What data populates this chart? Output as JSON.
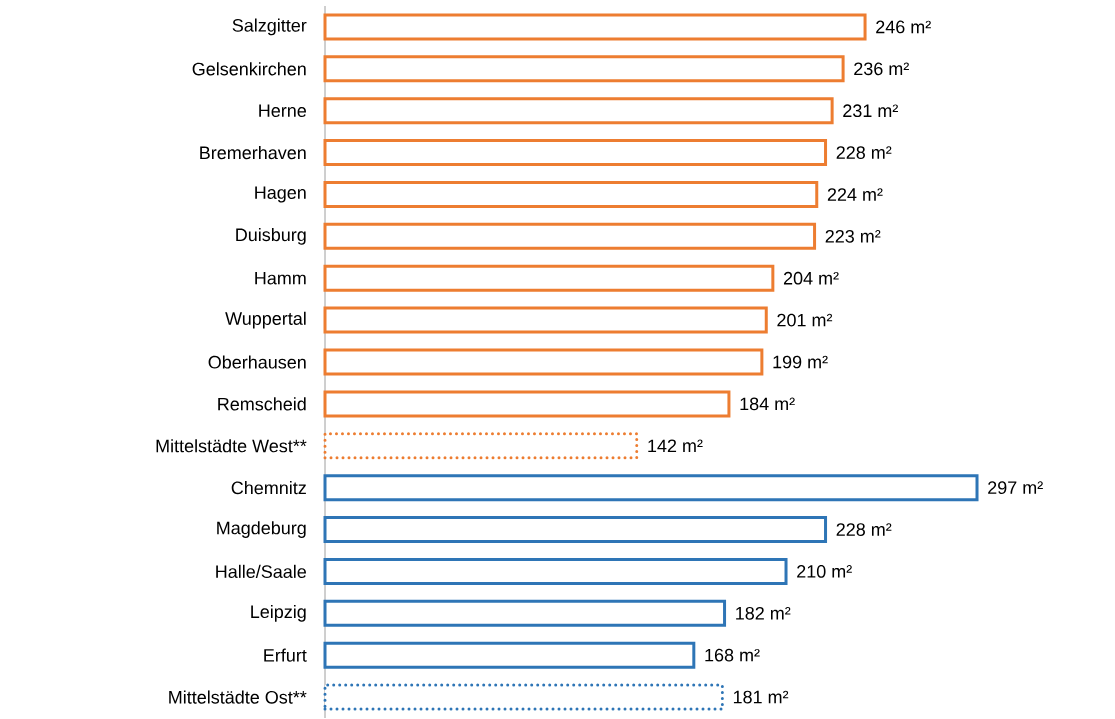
{
  "chart_data": {
    "type": "bar",
    "orientation": "horizontal",
    "categories": [
      "Salzgitter",
      "Gelsenkirchen",
      "Herne",
      "Bremerhaven",
      "Hagen",
      "Duisburg",
      "Hamm",
      "Wuppertal",
      "Oberhausen",
      "Remscheid",
      "Mittelstädte West**",
      "Chemnitz",
      "Magdeburg",
      "Halle/Saale",
      "Leipzig",
      "Erfurt",
      "Mittelstädte Ost**"
    ],
    "xlim": [
      0,
      297
    ],
    "tick_labels": "y",
    "series": [
      {
        "color": "#ed7d31",
        "line_style": "solid",
        "values": [
          246,
          236,
          231,
          228,
          224,
          223,
          204,
          201,
          199,
          184,
          null,
          null,
          null,
          null,
          null,
          null,
          null
        ],
        "value_labels": [
          "246 m²",
          "236 m²",
          "231 m²",
          "228 m²",
          "224 m²",
          "223 m²",
          "204 m²",
          "201 m²",
          "199 m²",
          "184 m²",
          null,
          null,
          null,
          null,
          null,
          null,
          null
        ]
      },
      {
        "color": "#ed7d31",
        "line_style": "dotted",
        "values": [
          null,
          null,
          null,
          null,
          null,
          null,
          null,
          null,
          null,
          null,
          142,
          null,
          null,
          null,
          null,
          null,
          null
        ],
        "value_labels": [
          null,
          null,
          null,
          null,
          null,
          null,
          null,
          null,
          null,
          null,
          "142 m²",
          null,
          null,
          null,
          null,
          null,
          null
        ]
      },
      {
        "color": "#2e75b6",
        "line_style": "solid",
        "values": [
          null,
          null,
          null,
          null,
          null,
          null,
          null,
          null,
          null,
          null,
          null,
          297,
          228,
          210,
          182,
          168,
          null
        ],
        "value_labels": [
          null,
          null,
          null,
          null,
          null,
          null,
          null,
          null,
          null,
          null,
          null,
          "297 m²",
          "228 m²",
          "210 m²",
          "182 m²",
          "168 m²",
          null
        ]
      },
      {
        "color": "#2e75b6",
        "line_style": "dotted",
        "values": [
          null,
          null,
          null,
          null,
          null,
          null,
          null,
          null,
          null,
          null,
          null,
          null,
          null,
          null,
          null,
          null,
          181
        ],
        "value_labels": [
          null,
          null,
          null,
          null,
          null,
          null,
          null,
          null,
          null,
          null,
          null,
          null,
          null,
          null,
          null,
          null,
          "181 m²"
        ]
      }
    ]
  }
}
